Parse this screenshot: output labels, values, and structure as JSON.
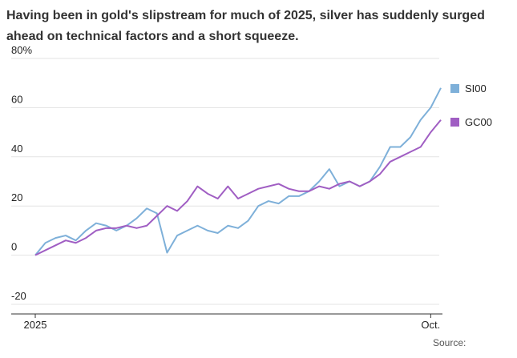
{
  "chart_data": {
    "type": "line",
    "title": [
      "Having been in gold's slipstream for much of 2025, silver has suddenly surged",
      "ahead on technical factors and a short squeeze."
    ],
    "categories": [
      "2025",
      null,
      null,
      null,
      null,
      null,
      null,
      null,
      null,
      null,
      null,
      null,
      null,
      null,
      null,
      null,
      null,
      null,
      null,
      null,
      null,
      null,
      null,
      null,
      null,
      null,
      null,
      null,
      null,
      null,
      null,
      null,
      null,
      null,
      null,
      null,
      null,
      null,
      null,
      "Oct.",
      null
    ],
    "series": [
      {
        "name": "SI00",
        "color": "#7eb0d9",
        "values": [
          0,
          5,
          7,
          8,
          6,
          10,
          13,
          12,
          10,
          12,
          15,
          19,
          17,
          1,
          8,
          10,
          12,
          10,
          9,
          12,
          11,
          14,
          20,
          22,
          21,
          24,
          24,
          26,
          30,
          35,
          28,
          30,
          28,
          30,
          36,
          44,
          44,
          48,
          55,
          60,
          68
        ]
      },
      {
        "name": "GC00",
        "color": "#a05ec3",
        "values": [
          0,
          2,
          4,
          6,
          5,
          7,
          10,
          11,
          11,
          12,
          11,
          12,
          16,
          20,
          18,
          22,
          28,
          25,
          23,
          28,
          23,
          25,
          27,
          28,
          29,
          27,
          26,
          26,
          28,
          27,
          29,
          30,
          28,
          30,
          33,
          38,
          40,
          42,
          44,
          50,
          55
        ]
      }
    ],
    "ylim": [
      -20,
      80
    ],
    "yticks": [
      -20,
      0,
      20,
      40,
      60,
      {
        "value": 80,
        "label": "80%"
      }
    ],
    "grid": true,
    "legend": "right",
    "source": "Source:"
  }
}
